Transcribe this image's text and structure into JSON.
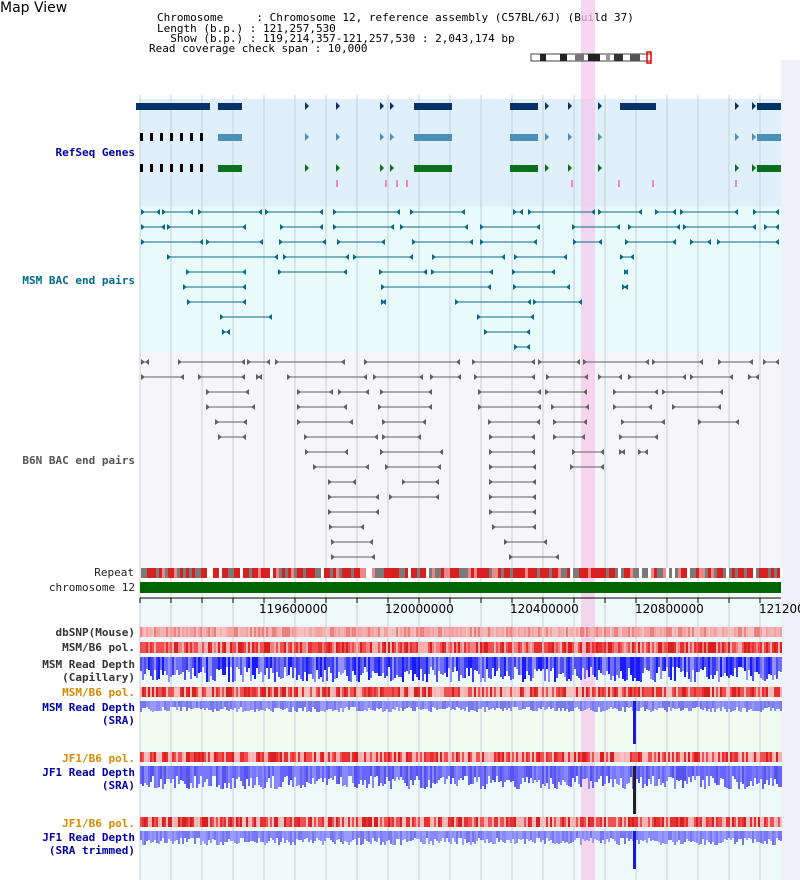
{
  "title": "Map View",
  "header": {
    "lines": [
      "Chromosome     : Chromosome 12, reference assembly (C57BL/6J) (Build 37)",
      "Length (b.p.) : 121,257,530",
      "  Show (b.p.) : 119,214,357-121,257,530 : 2,043,174 bp",
      "Read coverage check span : 10,000"
    ]
  },
  "tracks": {
    "refseq": "RefSeq Genes",
    "msm_bac": "MSM BAC end pairs",
    "b6n_bac": "B6N BAC end pairs",
    "repeat": "Repeat",
    "chromosome": "chromosome 12",
    "dbsnp": "dbSNP(Mouse)",
    "msm_b6_pol": "MSM/B6 pol.",
    "msm_depth_cap_1": "MSM Read Depth",
    "msm_depth_cap_2": "(Capillary)",
    "msm_b6_pol2": "MSM/B6 pol.",
    "msm_depth_sra_1": "MSM Read Depth",
    "msm_depth_sra_2": "(SRA)",
    "jf1_b6_pol": "JF1/B6 pol.",
    "jf1_depth_1": "JF1 Read Depth",
    "jf1_depth_2": "(SRA)",
    "jf1_b6_pol2": "JF1/B6 pol.",
    "jf1_trim_1": "JF1 Read Depth",
    "jf1_trim_2": "(SRA trimmed)"
  },
  "axis": {
    "ticks": [
      "119600000",
      "120000000",
      "120400000",
      "120800000",
      "121200"
    ]
  },
  "colors": {
    "refseq_bg": "#dff0fa",
    "msm_bg": "#e8fafa",
    "highlight": "#f6c8ec",
    "chrom": "#006400",
    "depth_blue": "#1a1aff"
  }
}
